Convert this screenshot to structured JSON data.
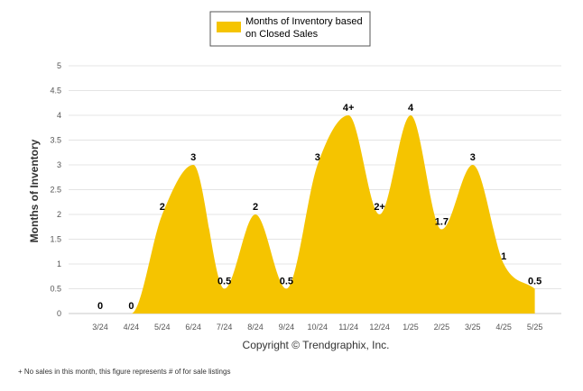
{
  "chart_data": {
    "type": "area",
    "categories": [
      "3/24",
      "4/24",
      "5/24",
      "6/24",
      "7/24",
      "8/24",
      "9/24",
      "10/24",
      "11/24",
      "12/24",
      "1/25",
      "2/25",
      "3/25",
      "4/25",
      "5/25"
    ],
    "series": [
      {
        "name": "Months of Inventory based on Closed Sales",
        "values": [
          0,
          0,
          2,
          3,
          0.5,
          2,
          0.5,
          3,
          4,
          2,
          4,
          1.7,
          3,
          1,
          0.5
        ],
        "labels": [
          "0",
          "0",
          "2",
          "3",
          "0.5",
          "2",
          "0.5",
          "3",
          "4+",
          "2+",
          "4",
          "1.7",
          "3",
          "1",
          "0.5"
        ],
        "color": "#F5C400"
      }
    ],
    "ylabel": "Months of Inventory",
    "xlabel": "",
    "ylim": [
      0,
      5
    ],
    "yticks": [
      "0",
      "0.5",
      "1",
      "1.5",
      "2",
      "2.5",
      "3",
      "3.5",
      "4",
      "4.5",
      "5"
    ],
    "grid": true,
    "legend_position": "top-center"
  },
  "legend": {
    "label_line1": "Months of Inventory based",
    "label_line2": "on Closed Sales"
  },
  "copyright": "Copyright © Trendgraphix, Inc.",
  "footnote": "+ No sales in this month, this figure represents # of for sale listings"
}
